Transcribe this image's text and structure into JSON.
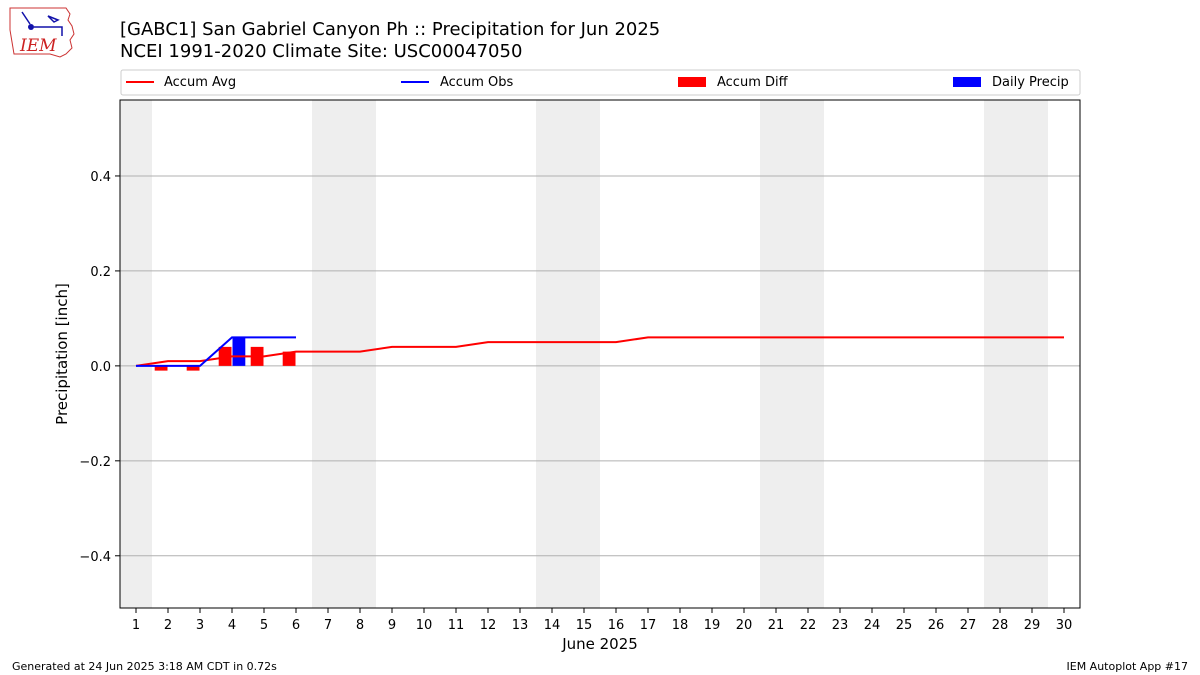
{
  "header": {
    "logo_text": "IEM",
    "title_line1": "[GABC1] San Gabriel Canyon Ph :: Precipitation for Jun 2025",
    "title_line2": "NCEI 1991-2020 Climate Site: USC00047050"
  },
  "footer": {
    "generated": "Generated at 24 Jun 2025 3:18 AM CDT in 0.72s",
    "app": "IEM Autoplot App #17"
  },
  "colors": {
    "accum_avg": "#ff0000",
    "accum_obs": "#0000ff",
    "accum_diff": "#ff0000",
    "daily_precip": "#0000ff",
    "weekend_shade": "#eeeeee",
    "grid": "#b0b0b0"
  },
  "chart_data": {
    "type": "line",
    "xlabel": "June 2025",
    "ylabel": "Precipitation [inch]",
    "xlim": [
      0.5,
      30.5
    ],
    "ylim": [
      -0.51,
      0.56
    ],
    "x_ticks": [
      1,
      2,
      3,
      4,
      5,
      6,
      7,
      8,
      9,
      10,
      11,
      12,
      13,
      14,
      15,
      16,
      17,
      18,
      19,
      20,
      21,
      22,
      23,
      24,
      25,
      26,
      27,
      28,
      29,
      30
    ],
    "x_tick_labels": [
      "1",
      "2",
      "3",
      "4",
      "5",
      "6",
      "7",
      "8",
      "9",
      "10",
      "11",
      "12",
      "13",
      "14",
      "15",
      "16",
      "17",
      "18",
      "19",
      "20",
      "21",
      "22",
      "23",
      "24",
      "25",
      "26",
      "27",
      "28",
      "29",
      "30"
    ],
    "y_ticks": [
      -0.4,
      -0.2,
      0.0,
      0.2,
      0.4
    ],
    "y_tick_labels": [
      "−0.4",
      "−0.2",
      "0.0",
      "0.2",
      "0.4"
    ],
    "grid": "horizontal",
    "legend_position": "top",
    "weekend_days": [
      1,
      7,
      8,
      14,
      15,
      21,
      22,
      28,
      29
    ],
    "series": [
      {
        "name": "Accum Avg",
        "kind": "line",
        "x": [
          1,
          2,
          3,
          4,
          5,
          6,
          7,
          8,
          9,
          10,
          11,
          12,
          13,
          14,
          15,
          16,
          17,
          18,
          19,
          20,
          21,
          22,
          23,
          24,
          25,
          26,
          27,
          28,
          29,
          30
        ],
        "values": [
          0.0,
          0.01,
          0.01,
          0.02,
          0.02,
          0.03,
          0.03,
          0.03,
          0.04,
          0.04,
          0.04,
          0.05,
          0.05,
          0.05,
          0.05,
          0.05,
          0.06,
          0.06,
          0.06,
          0.06,
          0.06,
          0.06,
          0.06,
          0.06,
          0.06,
          0.06,
          0.06,
          0.06,
          0.06,
          0.06
        ]
      },
      {
        "name": "Accum Obs",
        "kind": "line",
        "x": [
          1,
          2,
          3,
          4,
          5,
          6
        ],
        "values": [
          0.0,
          0.0,
          0.0,
          0.06,
          0.06,
          0.06
        ]
      },
      {
        "name": "Accum Diff",
        "kind": "bar",
        "x": [
          1,
          2,
          3,
          4,
          5,
          6
        ],
        "values": [
          0.0,
          -0.01,
          -0.01,
          0.04,
          0.04,
          0.03
        ]
      },
      {
        "name": "Daily Precip",
        "kind": "bar",
        "x": [
          1,
          2,
          3,
          4,
          5,
          6
        ],
        "values": [
          0.0,
          0.0,
          0.0,
          0.06,
          0.0,
          0.0
        ]
      }
    ]
  }
}
